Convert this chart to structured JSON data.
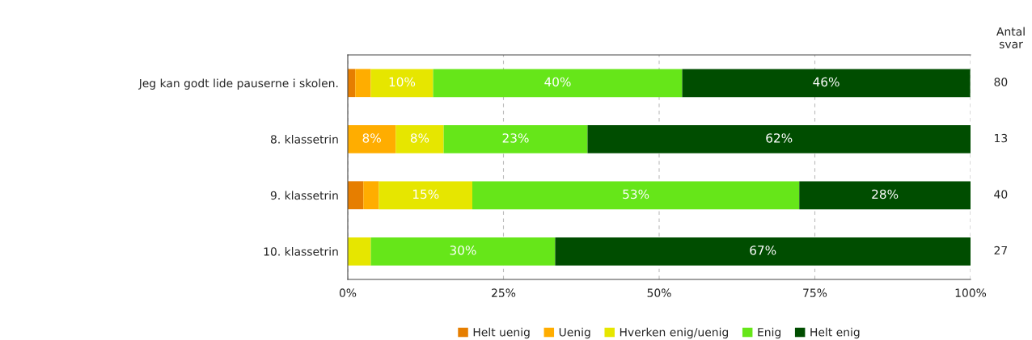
{
  "chart_data": {
    "type": "bar",
    "orientation": "horizontal",
    "stacked": true,
    "categories": [
      "Jeg kan godt lide pauserne i skolen.",
      "8. klassetrin",
      "9. klassetrin",
      "10. klassetrin"
    ],
    "series": [
      {
        "name": "Helt uenig",
        "color": "#e67e00",
        "values": [
          1.2,
          0,
          2.5,
          0
        ],
        "value_labels": [
          null,
          null,
          null,
          null
        ]
      },
      {
        "name": "Uenig",
        "color": "#ffad00",
        "values": [
          2.5,
          7.7,
          2.5,
          0
        ],
        "value_labels": [
          null,
          "8%",
          null,
          null
        ]
      },
      {
        "name": "Hverken enig/uenig",
        "color": "#e6e600",
        "values": [
          10,
          7.7,
          15,
          3.7
        ],
        "value_labels": [
          "10%",
          "8%",
          "15%",
          null
        ]
      },
      {
        "name": "Enig",
        "color": "#66e619",
        "values": [
          40,
          23.1,
          52.5,
          29.6
        ],
        "value_labels": [
          "40%",
          "23%",
          "53%",
          "30%"
        ]
      },
      {
        "name": "Helt enig",
        "color": "#004d00",
        "values": [
          46.25,
          61.5,
          27.5,
          66.7
        ],
        "value_labels": [
          "46%",
          "62%",
          "28%",
          "67%"
        ]
      }
    ],
    "xlim": [
      0,
      100
    ],
    "xticks": [
      {
        "value": 0,
        "label": "0%"
      },
      {
        "value": 25,
        "label": "25%"
      },
      {
        "value": 50,
        "label": "50%"
      },
      {
        "value": 75,
        "label": "75%"
      },
      {
        "value": 100,
        "label": "100%"
      }
    ],
    "grid": "x",
    "legend": "bottom",
    "annotations": [
      "Antal\nsvar",
      "80",
      "13",
      "40",
      "27"
    ]
  }
}
